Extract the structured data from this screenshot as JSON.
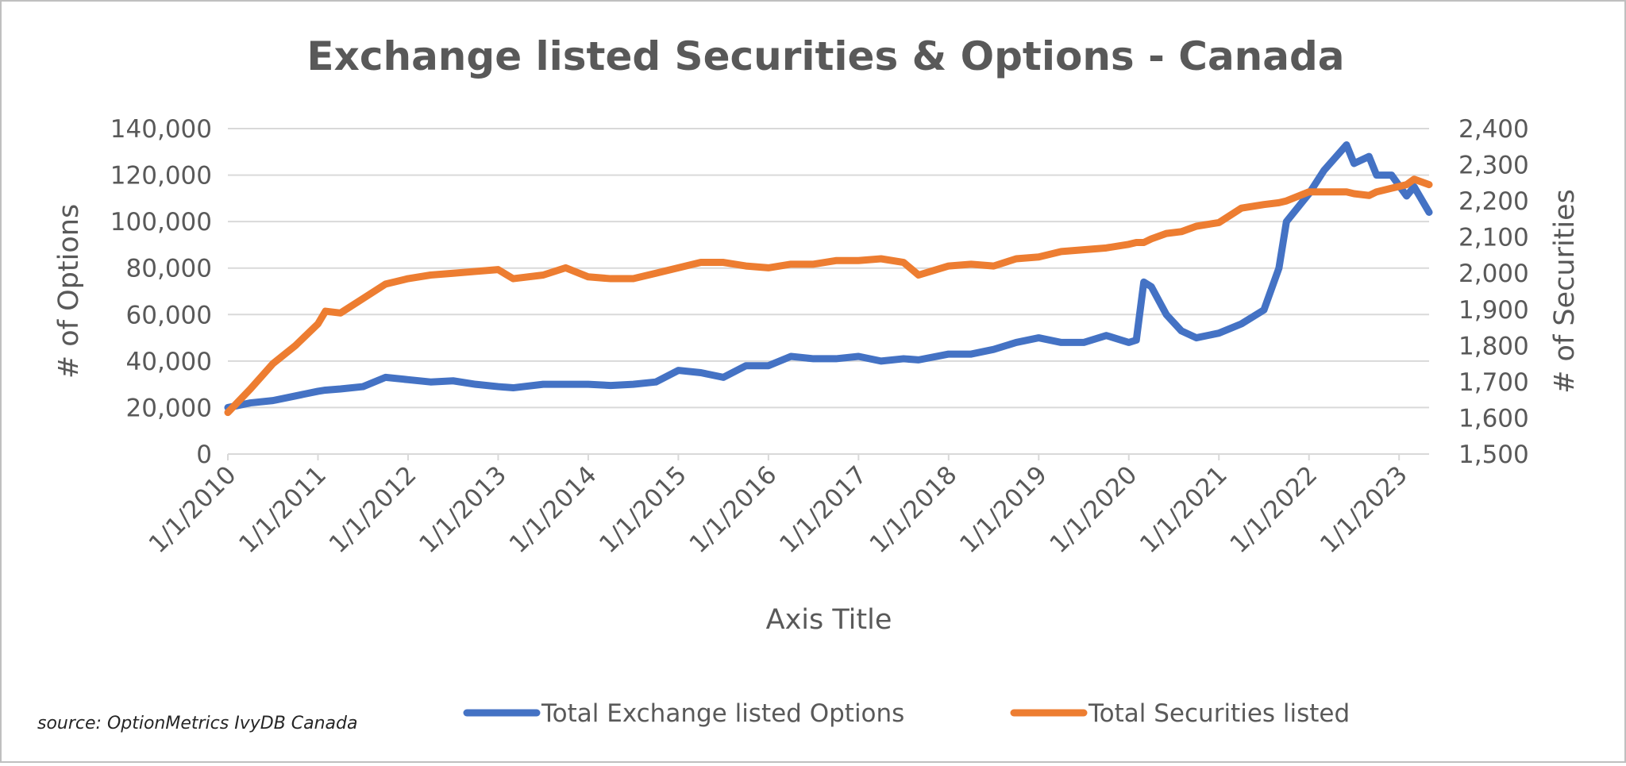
{
  "chart_data": {
    "type": "line",
    "title": "Exchange listed Securities & Options - Canada",
    "x_label": "Axis Title",
    "y_label": "# of Options",
    "y2_label": "# of Securities",
    "source": "source: OptionMetrics IvyDB Canada",
    "grid": true,
    "legend": "bottom",
    "x": [
      "1/1/2010",
      "4/1/2010",
      "7/1/2010",
      "10/1/2010",
      "1/1/2011",
      "2/1/2011",
      "4/1/2011",
      "7/1/2011",
      "10/1/2011",
      "1/1/2012",
      "4/1/2012",
      "7/1/2012",
      "10/1/2012",
      "1/1/2013",
      "3/1/2013",
      "7/1/2013",
      "10/1/2013",
      "1/1/2014",
      "4/1/2014",
      "7/1/2014",
      "10/1/2014",
      "1/1/2015",
      "4/1/2015",
      "7/1/2015",
      "10/1/2015",
      "1/1/2016",
      "4/1/2016",
      "7/1/2016",
      "10/1/2016",
      "1/1/2017",
      "4/1/2017",
      "7/1/2017",
      "9/1/2017",
      "1/1/2018",
      "4/1/2018",
      "7/1/2018",
      "10/1/2018",
      "1/1/2019",
      "4/1/2019",
      "7/1/2019",
      "10/1/2019",
      "1/1/2020",
      "2/1/2020",
      "3/1/2020",
      "4/1/2020",
      "6/1/2020",
      "8/1/2020",
      "10/1/2020",
      "1/1/2021",
      "4/1/2021",
      "7/1/2021",
      "9/1/2021",
      "10/1/2021",
      "1/1/2022",
      "3/1/2022",
      "6/1/2022",
      "7/1/2022",
      "9/1/2022",
      "10/1/2022",
      "12/1/2022",
      "2/1/2023",
      "3/1/2023",
      "5/1/2023"
    ],
    "xlim": [
      "1/1/2010",
      "5/1/2023"
    ],
    "xticks": [
      "1/1/2010",
      "1/1/2011",
      "1/1/2012",
      "1/1/2013",
      "1/1/2014",
      "1/1/2015",
      "1/1/2016",
      "1/1/2017",
      "1/1/2018",
      "1/1/2019",
      "1/1/2020",
      "1/1/2021",
      "1/1/2022",
      "1/1/2023"
    ],
    "ylim": [
      0,
      140000
    ],
    "yticks": [
      0,
      {
        "value": 20000,
        "label": "20,000"
      },
      {
        "value": 40000,
        "label": "40,000"
      },
      {
        "value": 60000,
        "label": "60,000"
      },
      {
        "value": 80000,
        "label": "80,000"
      },
      {
        "value": 100000,
        "label": "100,000"
      },
      {
        "value": 120000,
        "label": "120,000"
      },
      {
        "value": 140000,
        "label": "140,000"
      }
    ],
    "y2lim": [
      1500,
      2400
    ],
    "y2ticks": [
      {
        "value": 1500,
        "label": "1,500"
      },
      {
        "value": 1600,
        "label": "1,600"
      },
      {
        "value": 1700,
        "label": "1,700"
      },
      {
        "value": 1800,
        "label": "1,800"
      },
      {
        "value": 1900,
        "label": "1,900"
      },
      {
        "value": 2000,
        "label": "2,000"
      },
      {
        "value": 2100,
        "label": "2,100"
      },
      {
        "value": 2200,
        "label": "2,200"
      },
      {
        "value": 2300,
        "label": "2,300"
      },
      {
        "value": 2400,
        "label": "2,400"
      }
    ],
    "series": [
      {
        "name": "Total Exchange listed Options",
        "color": "#4472c4",
        "values": [
          20000,
          22000,
          23000,
          25000,
          27000,
          27500,
          28000,
          29000,
          33000,
          32000,
          31000,
          31500,
          30000,
          29000,
          28500,
          30000,
          30000,
          30000,
          29500,
          30000,
          31000,
          36000,
          35000,
          33000,
          38000,
          38000,
          42000,
          41000,
          41000,
          42000,
          40000,
          41000,
          40500,
          43000,
          43000,
          45000,
          48000,
          50000,
          48000,
          48000,
          51000,
          48000,
          49000,
          74000,
          72000,
          60000,
          53000,
          50000,
          52000,
          56000,
          62000,
          80000,
          100000,
          112000,
          122000,
          133000,
          125000,
          128000,
          120000,
          120000,
          111000,
          115000,
          104000
        ]
      },
      {
        "name": "Total Securities listed",
        "color": "#ed7d31",
        "axis": "y2",
        "values": [
          1615,
          1680,
          1750,
          1800,
          1860,
          1895,
          1890,
          1930,
          1970,
          1985,
          1995,
          2000,
          2005,
          2010,
          1985,
          1995,
          2015,
          1990,
          1985,
          1985,
          2000,
          2015,
          2030,
          2030,
          2020,
          2015,
          2025,
          2025,
          2035,
          2035,
          2040,
          2030,
          1995,
          2020,
          2025,
          2020,
          2040,
          2045,
          2060,
          2065,
          2070,
          2080,
          2085,
          2085,
          2095,
          2110,
          2115,
          2130,
          2140,
          2180,
          2190,
          2195,
          2200,
          2225,
          2225,
          2225,
          2220,
          2215,
          2225,
          2235,
          2245,
          2260,
          2245
        ]
      }
    ]
  }
}
